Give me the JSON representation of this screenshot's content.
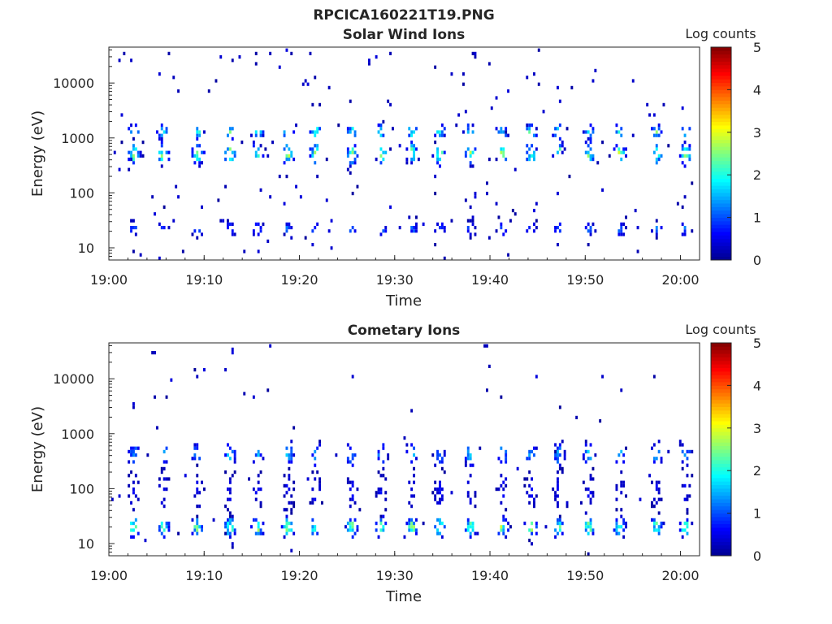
{
  "figure_title": "RPCICA160221T19.PNG",
  "colormap": {
    "name": "jet",
    "stops": [
      "#00008f",
      "#0000ff",
      "#0080ff",
      "#00ffff",
      "#80ff80",
      "#ffff00",
      "#ff8000",
      "#ff0000",
      "#800000"
    ]
  },
  "chart_data": [
    {
      "type": "heatmap",
      "title": "Solar Wind Ions",
      "xlabel": "Time",
      "ylabel": "Energy (eV)",
      "colorbar_label": "Log counts",
      "x_ticks": [
        "19:00",
        "19:10",
        "19:20",
        "19:30",
        "19:40",
        "19:50",
        "20:00"
      ],
      "x_tick_minutes": [
        0,
        10,
        20,
        30,
        40,
        50,
        60
      ],
      "xlim_minutes": [
        0,
        62
      ],
      "y_scale": "log",
      "y_ticks": [
        "10",
        "100",
        "1000",
        "10000"
      ],
      "y_tick_values": [
        10,
        100,
        1000,
        10000
      ],
      "ylim": [
        6,
        45000
      ],
      "color_ticks": [
        "0",
        "1",
        "2",
        "3",
        "4",
        "5"
      ],
      "color_range": [
        0,
        5
      ],
      "bursts_minutes": [
        2.5,
        5.6,
        9.2,
        12.6,
        15.5,
        18.7,
        21.6,
        25.4,
        28.5,
        31.7,
        34.6,
        37.8,
        41.2,
        44.2,
        47.1,
        50.3,
        53.5,
        57.4,
        60.4
      ],
      "bands": [
        {
          "energy_ev": 1300,
          "spread": 0.12,
          "peak": 2.2,
          "density": 0.55
        },
        {
          "energy_ev": 520,
          "spread": 0.18,
          "peak": 2.6,
          "density": 0.6
        },
        {
          "energy_ev": 22,
          "spread": 0.12,
          "peak": 1.2,
          "density": 0.6
        }
      ],
      "noise_density": 0.012
    },
    {
      "type": "heatmap",
      "title": "Cometary Ions",
      "xlabel": "Time",
      "ylabel": "Energy (eV)",
      "colorbar_label": "Log counts",
      "x_ticks": [
        "19:00",
        "19:10",
        "19:20",
        "19:30",
        "19:40",
        "19:50",
        "20:00"
      ],
      "x_tick_minutes": [
        0,
        10,
        20,
        30,
        40,
        50,
        60
      ],
      "xlim_minutes": [
        0,
        62
      ],
      "y_scale": "log",
      "y_ticks": [
        "10",
        "100",
        "1000",
        "10000"
      ],
      "y_tick_values": [
        10,
        100,
        1000,
        10000
      ],
      "ylim": [
        6,
        45000
      ],
      "color_ticks": [
        "0",
        "1",
        "2",
        "3",
        "4",
        "5"
      ],
      "color_range": [
        0,
        5
      ],
      "bursts_minutes": [
        2.5,
        5.6,
        9.2,
        12.6,
        15.5,
        18.7,
        21.6,
        25.4,
        28.5,
        31.7,
        34.6,
        37.8,
        41.2,
        44.2,
        47.1,
        50.3,
        53.5,
        57.4,
        60.4
      ],
      "bands": [
        {
          "energy_ev": 420,
          "spread": 0.2,
          "peak": 1.6,
          "density": 0.45
        },
        {
          "energy_ev": 90,
          "spread": 0.35,
          "peak": 0.6,
          "density": 0.35
        },
        {
          "energy_ev": 20,
          "spread": 0.16,
          "peak": 2.6,
          "density": 0.75
        }
      ],
      "noise_density": 0.006
    }
  ]
}
